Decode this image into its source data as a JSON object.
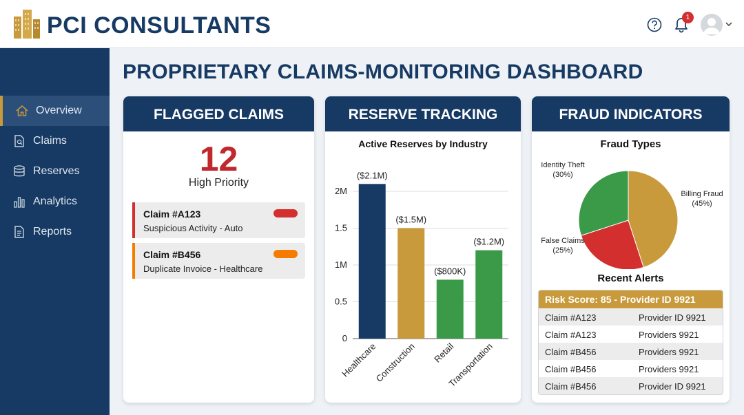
{
  "header": {
    "brand": "PCI CONSULTANTS",
    "notification_count": "1",
    "icons": [
      "building-logo-icon",
      "help-icon",
      "bell-icon",
      "avatar",
      "chevron-down-icon"
    ]
  },
  "sidebar": {
    "items": [
      {
        "label": "Overview",
        "icon": "home-icon",
        "active": true
      },
      {
        "label": "Claims",
        "icon": "document-search-icon",
        "active": false
      },
      {
        "label": "Reserves",
        "icon": "database-icon",
        "active": false
      },
      {
        "label": "Analytics",
        "icon": "bar-chart-icon",
        "active": false
      },
      {
        "label": "Reports",
        "icon": "report-icon",
        "active": false
      }
    ]
  },
  "page": {
    "title": "PROPRIETARY CLAIMS-MONITORING DASHBOARD"
  },
  "flagged": {
    "title": "FLAGGED CLAIMS",
    "count": "12",
    "count_label": "High Priority",
    "claims": [
      {
        "id": "Claim #A123",
        "desc": "Suspicious Activity - Auto",
        "color": "#d32f2f"
      },
      {
        "id": "Claim #B456",
        "desc": "Duplicate Invoice - Healthcare",
        "color": "#f57c00"
      }
    ]
  },
  "reserve": {
    "title": "RESERVE TRACKING",
    "chart_title": "Active Reserves by Industry"
  },
  "fraud": {
    "title": "FRAUD INDICATORS",
    "chart_title": "Fraud Types",
    "alerts_title": "Recent Alerts",
    "alerts_header": "Risk Score: 85 - Provider ID 9921",
    "alerts": [
      {
        "claim": "Claim #A123",
        "provider": "Provider ID 9921"
      },
      {
        "claim": "Claim #A123",
        "provider": "Providers 9921"
      },
      {
        "claim": "Claim #B456",
        "provider": "Providers 9921"
      },
      {
        "claim": "Claim #B456",
        "provider": "Providers 9921"
      },
      {
        "claim": "Claim #B456",
        "provider": "Provider ID 9921"
      }
    ]
  },
  "colors": {
    "navy": "#163a63",
    "gold": "#c99a3b",
    "green": "#3a9a48",
    "red": "#d32f2f",
    "orange": "#f57c00"
  },
  "chart_data": [
    {
      "type": "bar",
      "title": "Active Reserves by Industry",
      "categories": [
        "Healthcare",
        "Construction",
        "Retail",
        "Transportation"
      ],
      "values": [
        2100000,
        1500000,
        800000,
        1200000
      ],
      "data_labels": [
        "($2.1M)",
        "($1.5M)",
        "($800K)",
        "($1.2M)"
      ],
      "colors": [
        "#163a63",
        "#c99a3b",
        "#3a9a48",
        "#3a9a48"
      ],
      "yticks": [
        "0",
        "0.5",
        "1M",
        "1.5",
        "2M"
      ],
      "ylim": [
        0,
        2000000
      ],
      "grid": true
    },
    {
      "type": "pie",
      "title": "Fraud Types",
      "labels": [
        "Billing Fraud",
        "False Claims",
        "Identity Theft"
      ],
      "values": [
        45,
        25,
        30
      ],
      "display": [
        "(45%)",
        "(25%)",
        "(30%)"
      ],
      "colors": [
        "#c99a3b",
        "#d32f2f",
        "#3a9a48"
      ]
    }
  ]
}
